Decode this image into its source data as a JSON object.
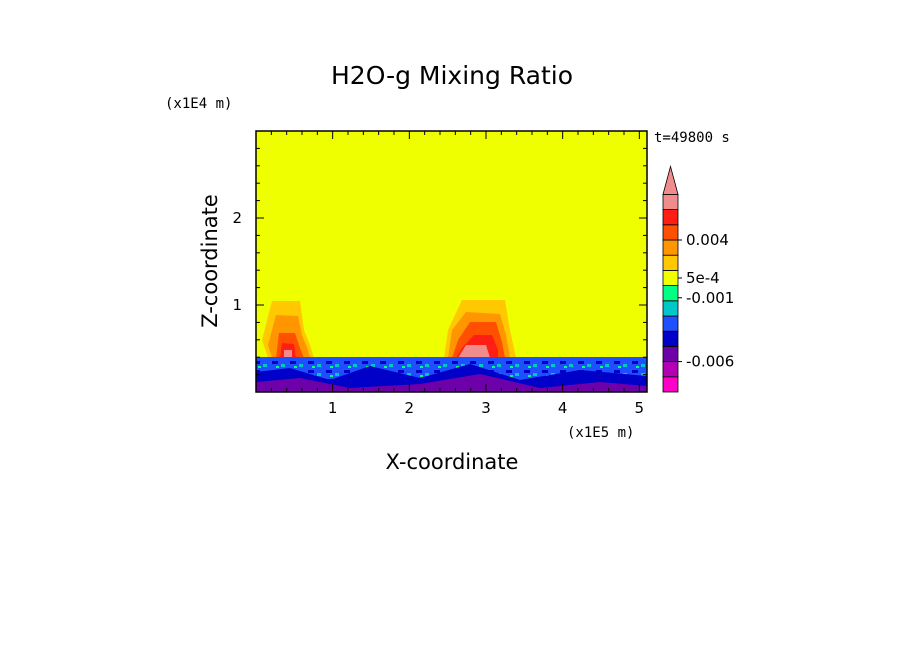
{
  "chart_data": {
    "type": "heatmap",
    "title": "H2O-g Mixing Ratio",
    "xlabel": "X-coordinate",
    "ylabel": "Z-coordinate",
    "x_multiplier": "(x1E5 m)",
    "y_multiplier": "(x1E4 m)",
    "time_label": "t=49800 s",
    "xlim": [
      0,
      5.1
    ],
    "ylim": [
      0,
      3
    ],
    "x_ticks": [
      {
        "value": 1,
        "label": "1"
      },
      {
        "value": 2,
        "label": "2"
      },
      {
        "value": 3,
        "label": "3"
      },
      {
        "value": 4,
        "label": "4"
      },
      {
        "value": 5,
        "label": "5"
      }
    ],
    "y_ticks": [
      {
        "value": 1,
        "label": "1"
      },
      {
        "value": 2,
        "label": "2"
      }
    ],
    "background_level_color": "#f0ff00",
    "colorbar": {
      "levels": [
        {
          "color": "#ff00c8"
        },
        {
          "color": "#b400b4"
        },
        {
          "color": "#6e00aa"
        },
        {
          "color": "#0000c8"
        },
        {
          "color": "#1e50ff"
        },
        {
          "color": "#00c8c8"
        },
        {
          "color": "#00ff82"
        },
        {
          "color": "#f0ff00"
        },
        {
          "color": "#ffc800"
        },
        {
          "color": "#ff9600"
        },
        {
          "color": "#ff5000"
        },
        {
          "color": "#ff1e14"
        },
        {
          "color": "#f08c8c"
        }
      ],
      "labels": [
        {
          "text": "0.004",
          "level": 10
        },
        {
          "text": "5e-4",
          "level": 7.5
        },
        {
          "text": "-0.001",
          "level": 6.2
        },
        {
          "text": "-0.006",
          "level": 2
        }
      ],
      "extend_top": true
    },
    "features": [
      {
        "name": "moist-surface-layer",
        "x_range": [
          0,
          5.1
        ],
        "z_top": 0.38
      },
      {
        "name": "plume-left",
        "x_center": 0.45,
        "z_top": 1.05
      },
      {
        "name": "plume-right",
        "x_center": 2.95,
        "z_top": 1.05
      }
    ]
  }
}
